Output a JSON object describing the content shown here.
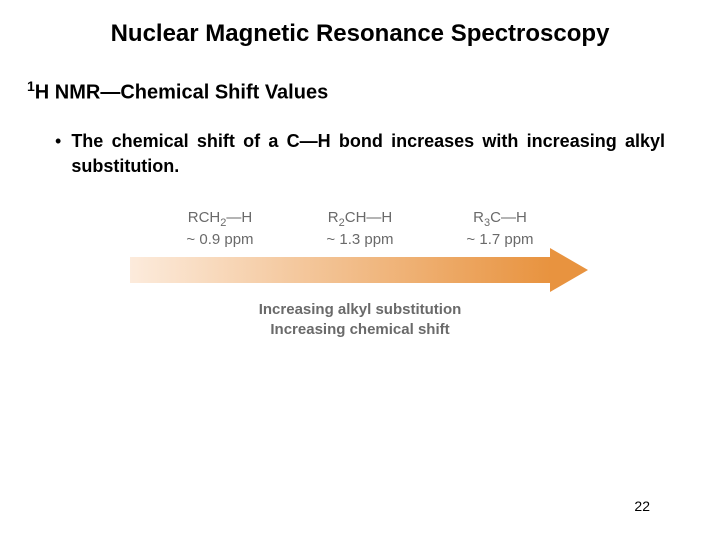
{
  "title": "Nuclear Magnetic Resonance Spectroscopy",
  "subtitle_pre": "1",
  "subtitle_main": "H NMR—Chemical Shift Values",
  "bullet": {
    "dot": "•",
    "text": "The chemical shift of a C—H bond increases with increasing alkyl substitution."
  },
  "figure": {
    "type": "infographic",
    "formulas": {
      "a": "RCH",
      "a_sub": "2",
      "a_tail": "—H",
      "b_pre": "R",
      "b_sub1": "2",
      "b_mid": "CH—H",
      "c_pre": "R",
      "c_sub1": "3",
      "c_mid": "C—H"
    },
    "ppm": {
      "a": "~ 0.9 ppm",
      "b": "~ 1.3 ppm",
      "c": "~ 1.7 ppm"
    },
    "arrow": {
      "gradient_start": "#fcebdc",
      "gradient_end": "#e8933f",
      "head_color": "#e8933f"
    },
    "caption_line1": "Increasing alkyl substitution",
    "caption_line2": "Increasing chemical shift",
    "text_color": "#6a6a6a"
  },
  "page_number": "22"
}
